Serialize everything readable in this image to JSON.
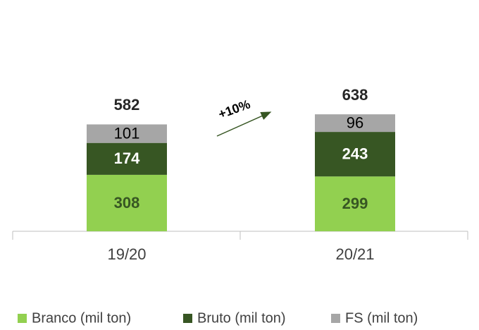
{
  "chart_data": {
    "type": "stacked_bar",
    "categories": [
      "19/20",
      "20/21"
    ],
    "series": [
      {
        "name": "Branco (mil ton)",
        "color": "#92d050",
        "label_color": "#375623",
        "values": [
          308,
          299
        ]
      },
      {
        "name": "Bruto (mil ton)",
        "color": "#375623",
        "label_color": "#ffffff",
        "values": [
          174,
          243
        ]
      },
      {
        "name": "FS (mil ton)",
        "color": "#a6a6a6",
        "label_color": "#000000",
        "values": [
          101,
          96
        ]
      }
    ],
    "totals": [
      582,
      638
    ],
    "annotation": "+10%"
  }
}
